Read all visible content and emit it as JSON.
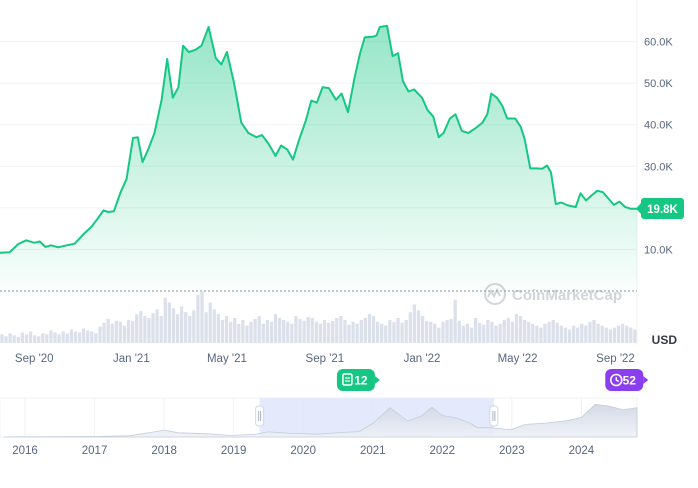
{
  "chart_data": {
    "type": "area",
    "currency_label": "USD",
    "current_price_label": "19.8K",
    "watermark": "CoinMarketCap",
    "y_ticks": [
      {
        "value": 10000,
        "label": "10.0K"
      },
      {
        "value": 20000,
        "label": "20.0K"
      },
      {
        "value": 30000,
        "label": "30.0K"
      },
      {
        "value": 40000,
        "label": "40.0K"
      },
      {
        "value": 50000,
        "label": "50.0K"
      },
      {
        "value": 60000,
        "label": "60.0K"
      }
    ],
    "ylim": [
      0,
      70000
    ],
    "x_range": [
      "2020-07-20",
      "2022-09-28"
    ],
    "x_ticks": [
      {
        "date": "2020-09-01",
        "label": "Sep '20"
      },
      {
        "date": "2021-01-01",
        "label": "Jan '21"
      },
      {
        "date": "2021-05-01",
        "label": "May '21"
      },
      {
        "date": "2021-09-01",
        "label": "Sep '21"
      },
      {
        "date": "2022-01-01",
        "label": "Jan '22"
      },
      {
        "date": "2022-05-01",
        "label": "May '22"
      },
      {
        "date": "2022-09-01",
        "label": "Sep '22"
      }
    ],
    "series": [
      {
        "color": "#16c784",
        "points": [
          [
            "2020-07-20",
            9200
          ],
          [
            "2020-08-01",
            9300
          ],
          [
            "2020-08-12",
            11300
          ],
          [
            "2020-08-22",
            12200
          ],
          [
            "2020-09-01",
            11600
          ],
          [
            "2020-09-08",
            11900
          ],
          [
            "2020-09-15",
            10600
          ],
          [
            "2020-09-22",
            11000
          ],
          [
            "2020-10-01",
            10500
          ],
          [
            "2020-10-12",
            11000
          ],
          [
            "2020-10-22",
            11400
          ],
          [
            "2020-11-01",
            13500
          ],
          [
            "2020-11-12",
            15500
          ],
          [
            "2020-11-20",
            17500
          ],
          [
            "2020-11-27",
            19400
          ],
          [
            "2020-12-03",
            19000
          ],
          [
            "2020-12-10",
            19200
          ],
          [
            "2020-12-18",
            23500
          ],
          [
            "2020-12-26",
            27000
          ],
          [
            "2021-01-03",
            36800
          ],
          [
            "2021-01-09",
            37000
          ],
          [
            "2021-01-15",
            31000
          ],
          [
            "2021-01-22",
            34000
          ],
          [
            "2021-01-30",
            38000
          ],
          [
            "2021-02-08",
            46000
          ],
          [
            "2021-02-15",
            55800
          ],
          [
            "2021-02-22",
            46500
          ],
          [
            "2021-03-01",
            49000
          ],
          [
            "2021-03-07",
            59000
          ],
          [
            "2021-03-14",
            57500
          ],
          [
            "2021-03-22",
            58000
          ],
          [
            "2021-03-30",
            59000
          ],
          [
            "2021-04-08",
            63500
          ],
          [
            "2021-04-17",
            56000
          ],
          [
            "2021-04-24",
            54500
          ],
          [
            "2021-05-01",
            57500
          ],
          [
            "2021-05-10",
            50000
          ],
          [
            "2021-05-19",
            40500
          ],
          [
            "2021-05-28",
            38000
          ],
          [
            "2021-06-07",
            37000
          ],
          [
            "2021-06-14",
            37500
          ],
          [
            "2021-06-22",
            35500
          ],
          [
            "2021-07-01",
            32500
          ],
          [
            "2021-07-08",
            35000
          ],
          [
            "2021-07-16",
            34000
          ],
          [
            "2021-07-23",
            31600
          ],
          [
            "2021-07-30",
            36000
          ],
          [
            "2021-08-08",
            41000
          ],
          [
            "2021-08-15",
            45800
          ],
          [
            "2021-08-22",
            45300
          ],
          [
            "2021-08-29",
            49000
          ],
          [
            "2021-09-06",
            48800
          ],
          [
            "2021-09-15",
            46000
          ],
          [
            "2021-09-22",
            47500
          ],
          [
            "2021-09-30",
            43000
          ],
          [
            "2021-10-08",
            51000
          ],
          [
            "2021-10-15",
            57000
          ],
          [
            "2021-10-21",
            61000
          ],
          [
            "2021-11-01",
            61200
          ],
          [
            "2021-11-05",
            61500
          ],
          [
            "2021-11-09",
            63500
          ],
          [
            "2021-11-18",
            63800
          ],
          [
            "2021-11-25",
            56500
          ],
          [
            "2021-12-02",
            57200
          ],
          [
            "2021-12-08",
            50500
          ],
          [
            "2021-12-15",
            48000
          ],
          [
            "2021-12-22",
            48500
          ],
          [
            "2022-01-01",
            46500
          ],
          [
            "2022-01-08",
            43500
          ],
          [
            "2022-01-15",
            42000
          ],
          [
            "2022-01-22",
            37000
          ],
          [
            "2022-01-28",
            38000
          ],
          [
            "2022-02-05",
            41500
          ],
          [
            "2022-02-12",
            42500
          ],
          [
            "2022-02-20",
            38500
          ],
          [
            "2022-02-28",
            38000
          ],
          [
            "2022-03-08",
            39000
          ],
          [
            "2022-03-18",
            40500
          ],
          [
            "2022-03-24",
            42500
          ],
          [
            "2022-03-29",
            47500
          ],
          [
            "2022-04-05",
            46500
          ],
          [
            "2022-04-12",
            44500
          ],
          [
            "2022-04-18",
            41500
          ],
          [
            "2022-04-28",
            41500
          ],
          [
            "2022-05-05",
            39500
          ],
          [
            "2022-05-10",
            36500
          ],
          [
            "2022-05-17",
            29500
          ],
          [
            "2022-05-24",
            29500
          ],
          [
            "2022-06-01",
            29400
          ],
          [
            "2022-06-07",
            30200
          ],
          [
            "2022-06-12",
            28500
          ],
          [
            "2022-06-18",
            20900
          ],
          [
            "2022-06-25",
            21300
          ],
          [
            "2022-07-03",
            20600
          ],
          [
            "2022-07-13",
            20200
          ],
          [
            "2022-07-19",
            23500
          ],
          [
            "2022-07-26",
            21800
          ],
          [
            "2022-08-02",
            23000
          ],
          [
            "2022-08-09",
            24100
          ],
          [
            "2022-08-16",
            23800
          ],
          [
            "2022-08-22",
            22500
          ],
          [
            "2022-08-30",
            20700
          ],
          [
            "2022-09-06",
            21500
          ],
          [
            "2022-09-13",
            20200
          ],
          [
            "2022-09-20",
            19800
          ],
          [
            "2022-09-28",
            19800
          ]
        ]
      }
    ],
    "volume": [
      9,
      7,
      10,
      8,
      6,
      11,
      9,
      12,
      8,
      7,
      10,
      9,
      13,
      11,
      9,
      12,
      10,
      14,
      12,
      11,
      15,
      13,
      12,
      10,
      17,
      21,
      25,
      20,
      23,
      22,
      18,
      24,
      23,
      30,
      33,
      28,
      26,
      31,
      35,
      28,
      47,
      42,
      36,
      30,
      38,
      32,
      28,
      34,
      50,
      54,
      32,
      42,
      35,
      30,
      24,
      28,
      22,
      26,
      20,
      24,
      18,
      22,
      25,
      28,
      20,
      24,
      22,
      30,
      26,
      24,
      22,
      20,
      28,
      25,
      23,
      27,
      26,
      22,
      20,
      24,
      21,
      23,
      26,
      28,
      24,
      19,
      22,
      20,
      24,
      26,
      30,
      28,
      22,
      20,
      18,
      24,
      22,
      26,
      21,
      24,
      32,
      40,
      34,
      28,
      23,
      22,
      20,
      16,
      22,
      24,
      25,
      45,
      23,
      18,
      20,
      16,
      26,
      21,
      19,
      24,
      22,
      18,
      20,
      24,
      26,
      22,
      30,
      28,
      24,
      22,
      20,
      18,
      16,
      20,
      22,
      24,
      21,
      18,
      16,
      14,
      18,
      16,
      20,
      18,
      22,
      24,
      20,
      18,
      16,
      14,
      16,
      18,
      20,
      18,
      16,
      14
    ],
    "events": [
      {
        "date": "2021-10-10",
        "label": "12",
        "icon": "document-icon",
        "color": "#16c784"
      },
      {
        "date": "2022-09-12",
        "label": "52",
        "icon": "clock-icon",
        "color": "#8b3df0"
      }
    ],
    "navigator": {
      "year_labels": [
        "2016",
        "2017",
        "2018",
        "2019",
        "2020",
        "2021",
        "2022",
        "2023",
        "2024"
      ],
      "selection_start": "2019-05-15",
      "selection_end": "2022-09-28",
      "profile": [
        [
          2015.7,
          0.3
        ],
        [
          2016.0,
          0.4
        ],
        [
          2016.5,
          0.6
        ],
        [
          2017.0,
          1.0
        ],
        [
          2017.5,
          2.5
        ],
        [
          2017.9,
          12.0
        ],
        [
          2018.0,
          15.0
        ],
        [
          2018.2,
          9.0
        ],
        [
          2018.6,
          7.0
        ],
        [
          2018.95,
          3.5
        ],
        [
          2019.3,
          5.5
        ],
        [
          2019.5,
          11.0
        ],
        [
          2019.8,
          8.0
        ],
        [
          2020.0,
          7.2
        ],
        [
          2020.2,
          6.0
        ],
        [
          2020.5,
          9.3
        ],
        [
          2020.8,
          11.5
        ],
        [
          2021.0,
          29.0
        ],
        [
          2021.25,
          63.0
        ],
        [
          2021.5,
          34.0
        ],
        [
          2021.7,
          45.0
        ],
        [
          2021.85,
          64.0
        ],
        [
          2022.0,
          46.0
        ],
        [
          2022.2,
          41.0
        ],
        [
          2022.4,
          30.0
        ],
        [
          2022.5,
          20.0
        ],
        [
          2022.7,
          20.0
        ],
        [
          2022.9,
          17.0
        ],
        [
          2023.0,
          16.5
        ],
        [
          2023.2,
          27.0
        ],
        [
          2023.5,
          30.0
        ],
        [
          2023.8,
          35.0
        ],
        [
          2024.0,
          42.0
        ],
        [
          2024.2,
          70.0
        ],
        [
          2024.4,
          66.0
        ],
        [
          2024.6,
          58.0
        ],
        [
          2024.8,
          63.0
        ]
      ],
      "x_start": 2015.64,
      "x_end": 2024.8
    }
  }
}
